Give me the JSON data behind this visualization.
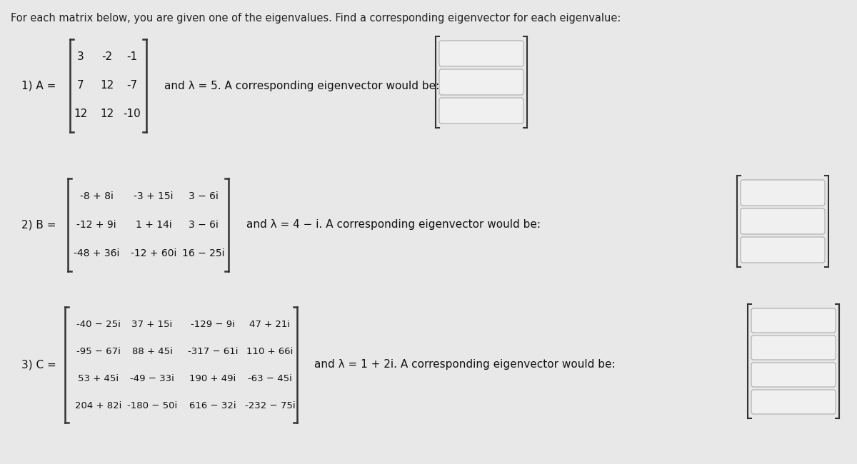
{
  "bg_color": "#e8e8e8",
  "title": "For each matrix below, you are given one of the eigenvalues. Find a corresponding eigenvector for each eigenvalue:",
  "problem1": {
    "label": "1) A =",
    "matrix": [
      [
        "3",
        "-2",
        "-1"
      ],
      [
        "7",
        "12",
        "-7"
      ],
      [
        "12",
        "12",
        "-10"
      ]
    ],
    "lambda_text": "and λ = 5. A corresponding eigenvector would be:",
    "answer_rows": 3
  },
  "problem2": {
    "label": "2) B =",
    "matrix": [
      [
        "-8 + 8i",
        "-3 + 15i",
        "3 − 6i"
      ],
      [
        "-12 + 9i",
        "1 + 14i",
        "3 − 6i"
      ],
      [
        "-48 + 36i",
        "-12 + 60i",
        "16 − 25i"
      ]
    ],
    "lambda_text": "and λ = 4 − i. A corresponding eigenvector would be:",
    "answer_rows": 3
  },
  "problem3": {
    "label": "3) C =",
    "matrix": [
      [
        "-40 − 25i",
        "37 + 15i",
        "-129 − 9i",
        "47 + 21i"
      ],
      [
        "-95 − 67i",
        "88 + 45i",
        "-317 − 61i",
        "110 + 66i"
      ],
      [
        "53 + 45i",
        "-49 − 33i",
        "190 + 49i",
        "-63 − 45i"
      ],
      [
        "204 + 82i",
        "-180 − 50i",
        "616 − 32i",
        "-232 − 75i"
      ]
    ],
    "lambda_text": "and λ = 1 + 2i. A corresponding eigenvector would be:",
    "answer_rows": 4
  },
  "box_fill": "#f0f0f0",
  "box_edge": "#aaaaaa"
}
